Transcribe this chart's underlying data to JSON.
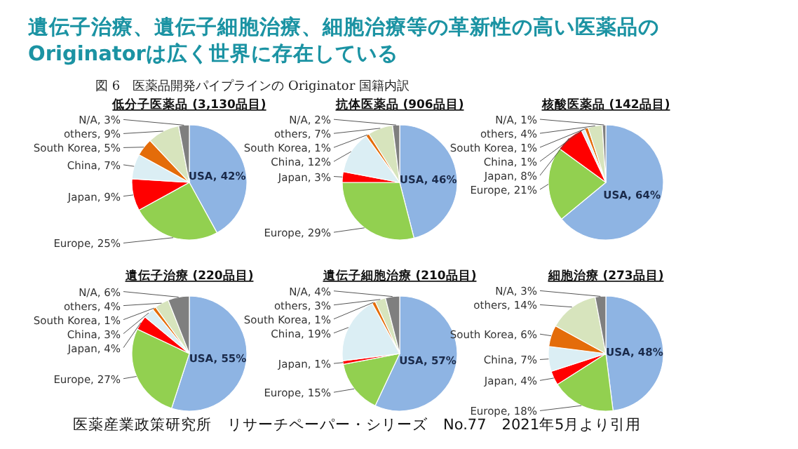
{
  "chart_data": [
    {
      "type": "other",
      "title": "遺伝子治療、遺伝子細胞治療、細胞治療等の革新性の高い医薬品のOriginatorは広く世界に存在している",
      "subtitle": "図 6　医薬品開発パイプラインの Originator 国籍内訳",
      "annotations": [
        "医薬産業政策研究所　リサーチペーパー・シリーズ　No.77　2021年5月より引用"
      ]
    },
    {
      "type": "pie",
      "title": "低分子医薬品 (3,130品目)",
      "categories": [
        "USA",
        "Europe",
        "Japan",
        "China",
        "South Korea",
        "others",
        "N/A"
      ],
      "values": [
        42,
        25,
        9,
        7,
        5,
        9,
        3
      ],
      "value_labels": [
        "42%",
        "25%",
        "9%",
        "7%",
        "5%",
        "9%",
        "3%"
      ],
      "colors": [
        "#8eb4e3",
        "#92d050",
        "#ff0000",
        "#dbeef4",
        "#e46c0a",
        "#d7e4bd",
        "#7f7f7f"
      ]
    },
    {
      "type": "pie",
      "title": "抗体医薬品 (906品目)",
      "categories": [
        "USA",
        "Europe",
        "Japan",
        "China",
        "South Korea",
        "others",
        "N/A"
      ],
      "values": [
        46,
        29,
        3,
        12,
        1,
        7,
        2
      ],
      "value_labels": [
        "46%",
        "29%",
        "3%",
        "12%",
        "1%",
        "7%",
        "2%"
      ],
      "colors": [
        "#8eb4e3",
        "#92d050",
        "#ff0000",
        "#dbeef4",
        "#e46c0a",
        "#d7e4bd",
        "#7f7f7f"
      ]
    },
    {
      "type": "pie",
      "title": "核酸医薬品 (142品目)",
      "categories": [
        "USA",
        "Europe",
        "Japan",
        "China",
        "South Korea",
        "others",
        "N/A"
      ],
      "values": [
        64,
        21,
        8,
        1,
        1,
        4,
        1
      ],
      "value_labels": [
        "64%",
        "21%",
        "8%",
        "1%",
        "1%",
        "4%",
        "1%"
      ],
      "colors": [
        "#8eb4e3",
        "#92d050",
        "#ff0000",
        "#dbeef4",
        "#e46c0a",
        "#d7e4bd",
        "#7f7f7f"
      ]
    },
    {
      "type": "pie",
      "title": "遺伝子治療 (220品目)",
      "categories": [
        "USA",
        "Europe",
        "Japan",
        "China",
        "South Korea",
        "others",
        "N/A"
      ],
      "values": [
        55,
        27,
        4,
        3,
        1,
        4,
        6
      ],
      "value_labels": [
        "55%",
        "27%",
        "4%",
        "3%",
        "1%",
        "4%",
        "6%"
      ],
      "colors": [
        "#8eb4e3",
        "#92d050",
        "#ff0000",
        "#dbeef4",
        "#e46c0a",
        "#d7e4bd",
        "#7f7f7f"
      ]
    },
    {
      "type": "pie",
      "title": "遺伝子細胞治療 (210品目)",
      "categories": [
        "USA",
        "Europe",
        "Japan",
        "China",
        "South Korea",
        "others",
        "N/A"
      ],
      "values": [
        57,
        15,
        1,
        19,
        1,
        3,
        4
      ],
      "value_labels": [
        "57%",
        "15%",
        "1%",
        "19%",
        "1%",
        "3%",
        "4%"
      ],
      "colors": [
        "#8eb4e3",
        "#92d050",
        "#ff0000",
        "#dbeef4",
        "#e46c0a",
        "#d7e4bd",
        "#7f7f7f"
      ]
    },
    {
      "type": "pie",
      "title": "細胞治療 (273品目)",
      "categories": [
        "USA",
        "Europe",
        "Japan",
        "China",
        "South Korea",
        "others",
        "N/A"
      ],
      "values": [
        48,
        18,
        4,
        7,
        6,
        14,
        3
      ],
      "value_labels": [
        "48%",
        "18%",
        "4%",
        "7%",
        "6%",
        "14%",
        "3%"
      ],
      "colors": [
        "#8eb4e3",
        "#92d050",
        "#ff0000",
        "#dbeef4",
        "#e46c0a",
        "#d7e4bd",
        "#7f7f7f"
      ]
    }
  ]
}
